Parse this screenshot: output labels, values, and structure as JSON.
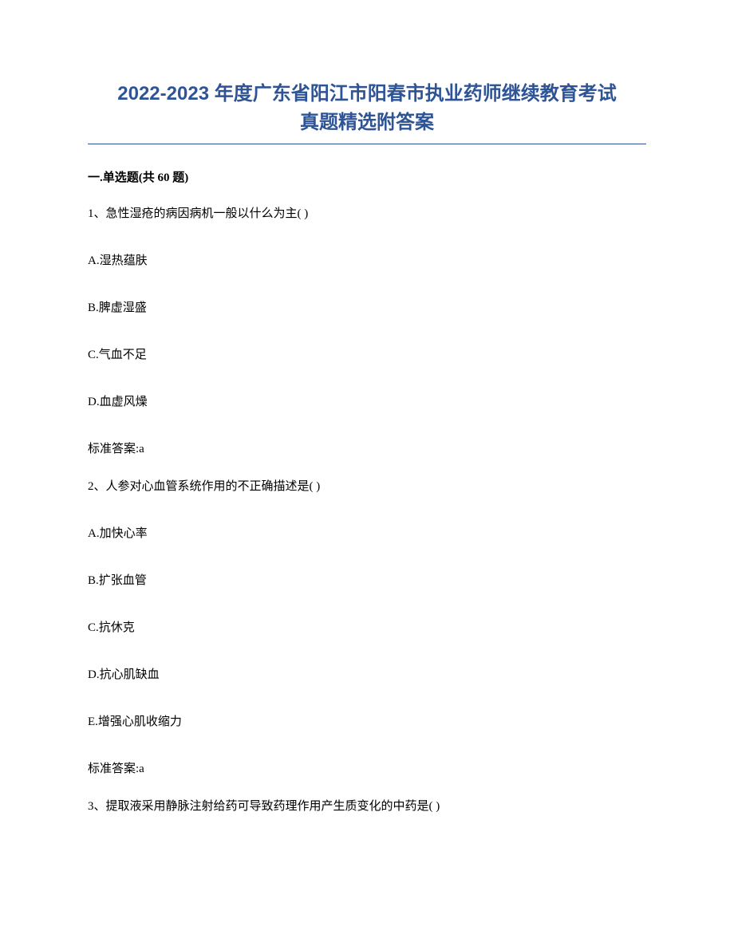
{
  "title_line1": "2022-2023 年度广东省阳江市阳春市执业药师继续教育考试",
  "title_line2": "真题精选附答案",
  "section_header": "一.单选题(共 60 题)",
  "questions": [
    {
      "prompt": "1、急性湿疮的病因病机一般以什么为主( )",
      "options": [
        "A.湿热蕴肤",
        "B.脾虚湿盛",
        "C.气血不足",
        "D.血虚风燥"
      ],
      "answer": "标准答案:a"
    },
    {
      "prompt": "2、人参对心血管系统作用的不正确描述是( )",
      "options": [
        "A.加快心率",
        "B.扩张血管",
        "C.抗休克",
        "D.抗心肌缺血",
        "E.增强心肌收缩力"
      ],
      "answer": "标准答案:a"
    },
    {
      "prompt": "3、提取液采用静脉注射给药可导致药理作用产生质变化的中药是( )",
      "options": [],
      "answer": ""
    }
  ],
  "colors": {
    "title_color": "#2e5496",
    "text_color": "#000000",
    "background": "#ffffff",
    "underline_color": "#2e5496"
  },
  "typography": {
    "title_fontsize": 24,
    "body_fontsize": 15,
    "title_font_family": "Microsoft YaHei",
    "body_font_family": "SimSun"
  }
}
